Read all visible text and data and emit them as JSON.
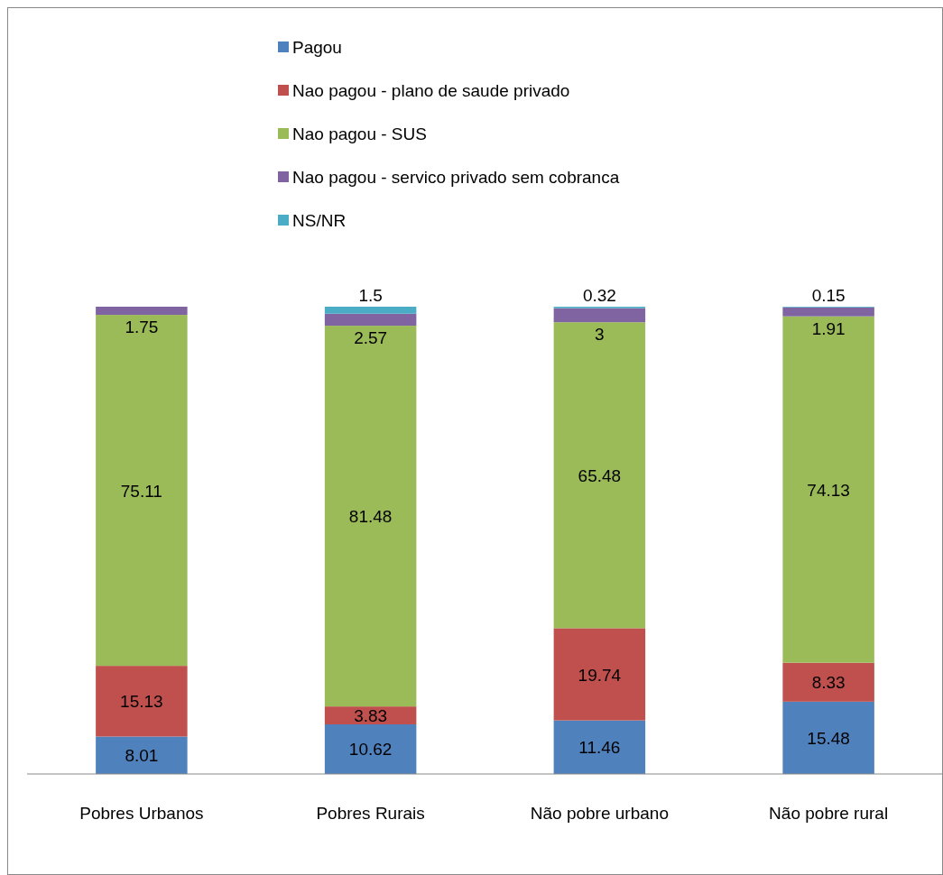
{
  "chart_data": {
    "type": "bar",
    "stacked": true,
    "data_labels": true,
    "legend": "top",
    "categories": [
      "Pobres Urbanos",
      "Pobres Rurais",
      "Não pobre urbano",
      "Não pobre rural"
    ],
    "series": [
      {
        "name": "Pagou",
        "color": "#4f81bd",
        "values": [
          8.01,
          10.62,
          11.46,
          15.48
        ]
      },
      {
        "name": "Nao pagou - plano de saude privado",
        "color": "#c0504d",
        "values": [
          15.13,
          3.83,
          19.74,
          8.33
        ]
      },
      {
        "name": "Nao pagou - SUS",
        "color": "#9bbb59",
        "values": [
          75.11,
          81.48,
          65.48,
          74.13
        ]
      },
      {
        "name": "Nao pagou - servico privado sem cobranca",
        "color": "#8064a2",
        "values": [
          1.75,
          2.57,
          3,
          1.91
        ]
      },
      {
        "name": "NS/NR",
        "color": "#4bacc6",
        "values": [
          null,
          1.5,
          0.32,
          0.15
        ]
      }
    ]
  }
}
